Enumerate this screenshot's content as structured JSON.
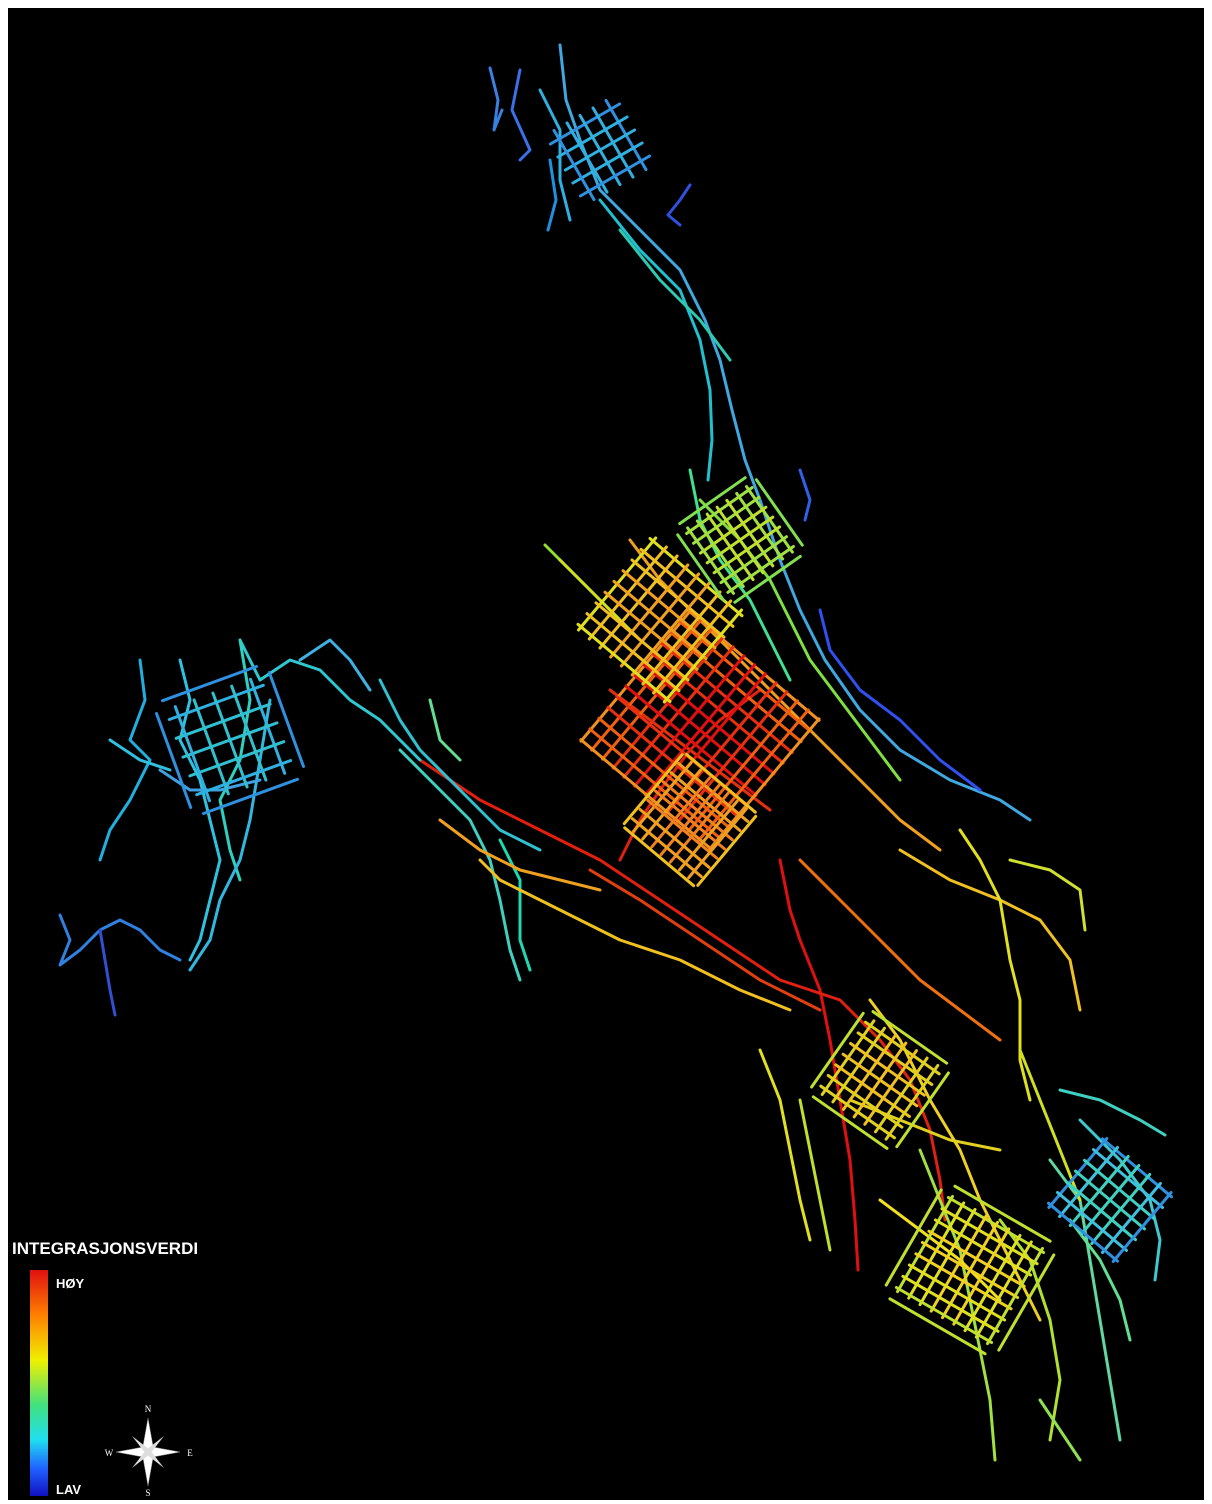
{
  "legend": {
    "title": "INTEGRASJONSVERDI",
    "high": "HØY",
    "low": "LAV"
  },
  "compass": {
    "north": "N",
    "south": "S",
    "east": "E",
    "west": "W"
  }
}
